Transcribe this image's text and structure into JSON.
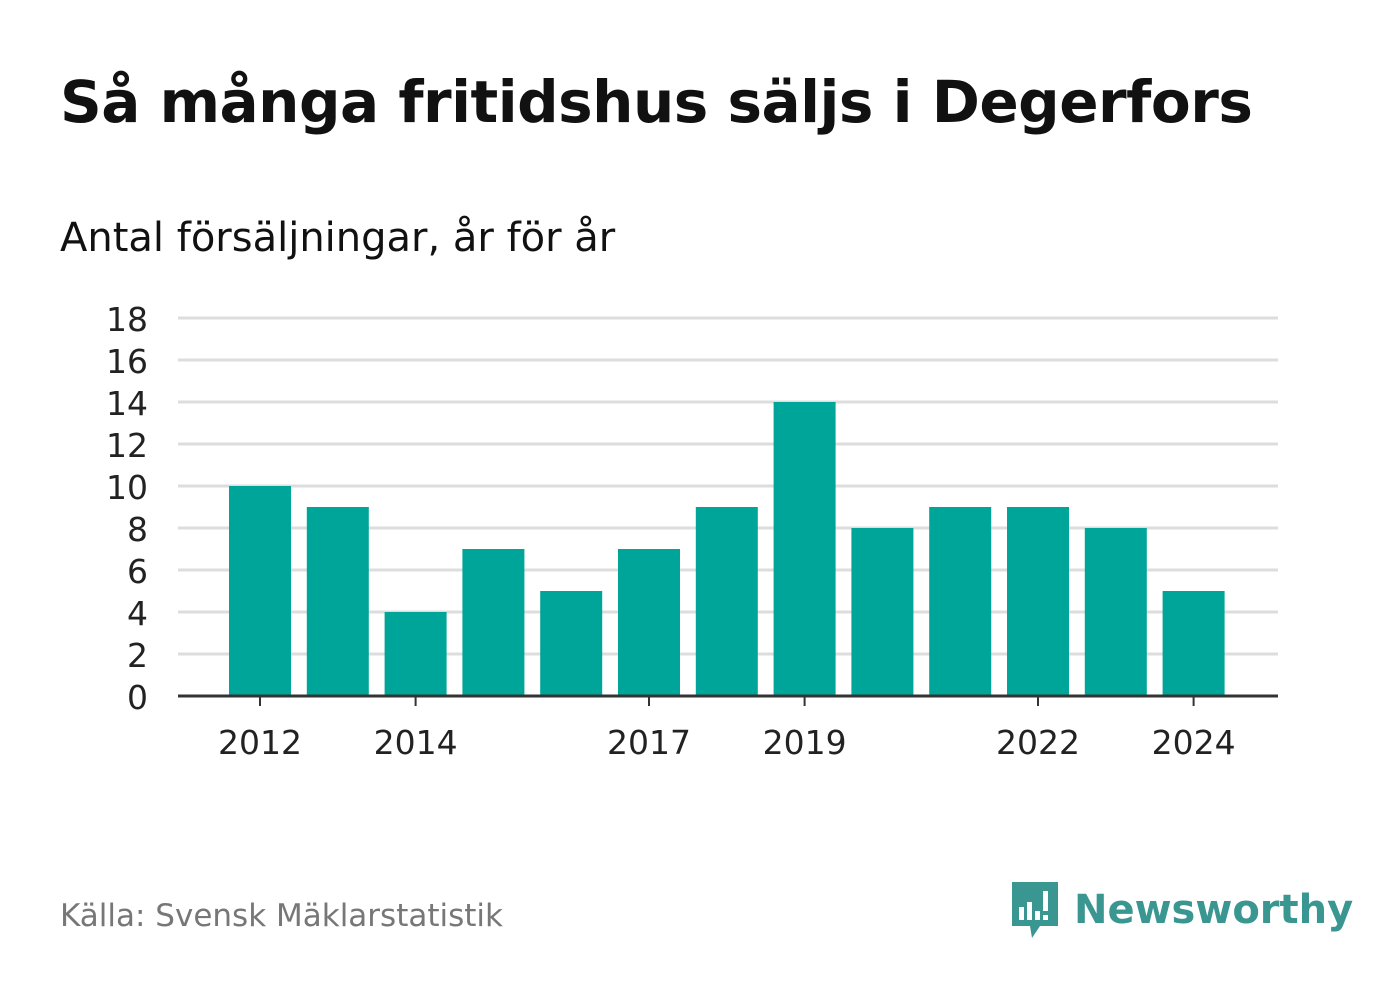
{
  "title": "Så många fritidshus säljs i Degerfors",
  "subtitle": "Antal försäljningar, år för år",
  "source": "Källa: Svensk Mäklarstatistik",
  "brand": "Newsworthy",
  "colors": {
    "bar": "#00a59a",
    "gridline": "#dddddd",
    "axis": "#333333",
    "brand": "#3a9690",
    "source_text": "#777777"
  },
  "chart_data": {
    "type": "bar",
    "categories": [
      "2012",
      "2013",
      "2014",
      "2015",
      "2016",
      "2017",
      "2018",
      "2019",
      "2020",
      "2021",
      "2022",
      "2023",
      "2024"
    ],
    "values": [
      10,
      9,
      4,
      7,
      5,
      7,
      9,
      14,
      8,
      9,
      9,
      8,
      5
    ],
    "x_tick_labels": [
      "2012",
      "2014",
      "2017",
      "2019",
      "2022",
      "2024"
    ],
    "y_ticks": [
      0,
      2,
      4,
      6,
      8,
      10,
      12,
      14,
      16,
      18
    ],
    "ylim": [
      0,
      18
    ],
    "grid": true,
    "xlabel": "",
    "ylabel": ""
  }
}
